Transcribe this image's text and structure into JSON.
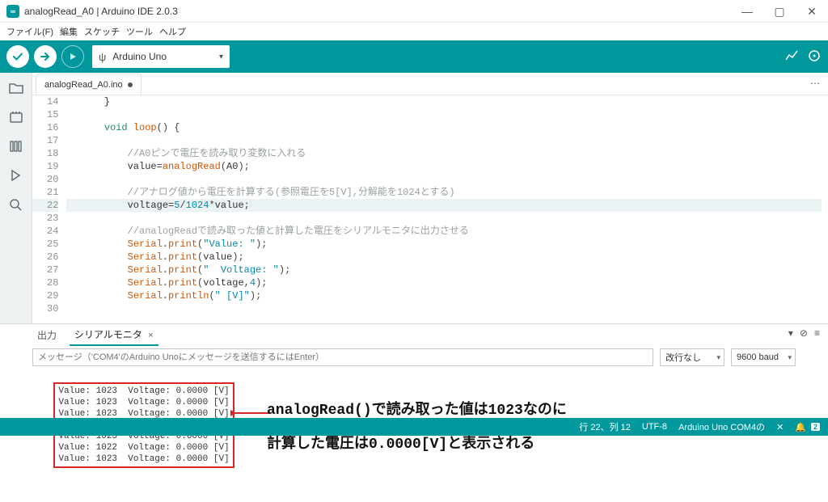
{
  "window": {
    "title": "analogRead_A0 | Arduino IDE 2.0.3"
  },
  "menu": {
    "file": "ファイル(F)",
    "edit": "編集",
    "sketch": "スケッチ",
    "tools": "ツール",
    "help": "ヘルプ"
  },
  "board": {
    "name": "Arduino Uno"
  },
  "file_tab": {
    "name": "analogRead_A0.ino"
  },
  "code": {
    "lines": [
      {
        "n": 14,
        "kind": "plain",
        "text": "    }"
      },
      {
        "n": 15,
        "kind": "blank",
        "text": ""
      },
      {
        "n": 16,
        "kind": "loop"
      },
      {
        "n": 17,
        "kind": "blank",
        "text": ""
      },
      {
        "n": 18,
        "kind": "comment",
        "text": "        //A0ピンで電圧を読み取り変数に入れる"
      },
      {
        "n": 19,
        "kind": "analogread"
      },
      {
        "n": 20,
        "kind": "blank",
        "text": ""
      },
      {
        "n": 21,
        "kind": "comment",
        "text": "        //アナログ値から電圧を計算する(参照電圧を5[V],分解能を1024とする)"
      },
      {
        "n": 22,
        "kind": "voltage",
        "hl": true
      },
      {
        "n": 23,
        "kind": "blank",
        "text": ""
      },
      {
        "n": 24,
        "kind": "comment",
        "text": "        //analogReadで読み取った値と計算した電圧をシリアルモニタに出力させる"
      },
      {
        "n": 25,
        "kind": "print",
        "arg": "\"Value: \""
      },
      {
        "n": 26,
        "kind": "print_var",
        "arg": "value"
      },
      {
        "n": 27,
        "kind": "print",
        "arg": "\"  Voltage: \""
      },
      {
        "n": 28,
        "kind": "print_var2",
        "arg1": "voltage",
        "arg2": "4"
      },
      {
        "n": 29,
        "kind": "println",
        "arg": "\" [V]\""
      },
      {
        "n": 30,
        "kind": "blank",
        "text": ""
      }
    ]
  },
  "bottom": {
    "tab_output": "出力",
    "tab_serial": "シリアルモニタ",
    "input_placeholder": "メッセージ（'COM4'のArduino Unoにメッセージを送信するにはEnter）",
    "line_ending": "改行なし",
    "baud": "9600 baud"
  },
  "serial": {
    "rows": [
      "Value: 1023  Voltage: 0.0000 [V]",
      "Value: 1023  Voltage: 0.0000 [V]",
      "Value: 1023  Voltage: 0.0000 [V]",
      "Value: 1022  Voltage: 0.0000 [V]",
      "Value: 1023  Voltage: 0.0000 [V]",
      "Value: 1022  Voltage: 0.0000 [V]",
      "Value: 1023  Voltage: 0.0000 [V]"
    ]
  },
  "annotation": {
    "line1": "analogRead()で読み取った値は1023なのに",
    "line2": "計算した電圧は0.0000[V]と表示される",
    "arrow_color": "#d9262a"
  },
  "status": {
    "cursor": "行 22、列 12",
    "encoding": "UTF-8",
    "board_port": "Arduino Uno COM4の",
    "notif": "2"
  },
  "colors": {
    "teal": "#00979d",
    "sidebar_bg": "#edf1f1"
  }
}
